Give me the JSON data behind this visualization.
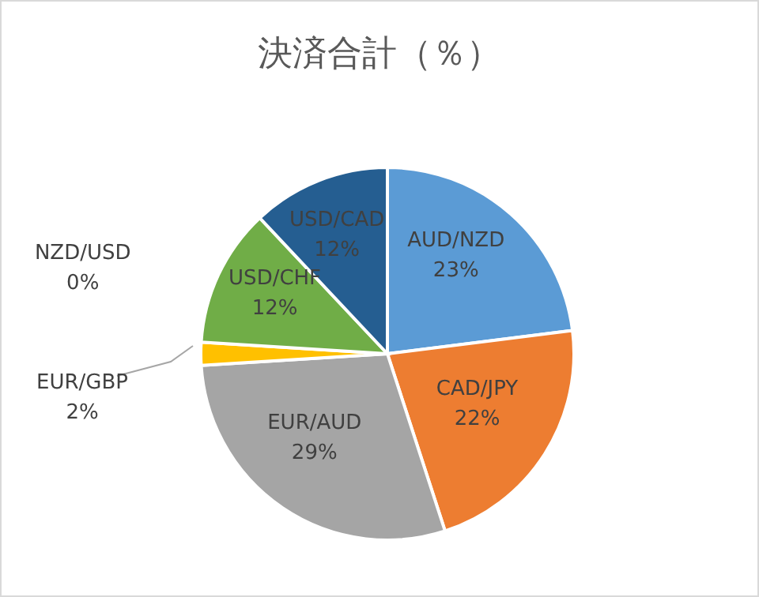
{
  "chart_data": {
    "type": "pie",
    "title": "決済合計（％）",
    "categories": [
      "AUD/NZD",
      "CAD/JPY",
      "EUR/AUD",
      "EUR/GBP",
      "NZD/USD",
      "USD/CHF",
      "USD/CAD"
    ],
    "values": [
      23,
      22,
      29,
      2,
      0,
      12,
      12
    ],
    "value_labels": [
      "23%",
      "22%",
      "29%",
      "2%",
      "0%",
      "12%",
      "12%"
    ],
    "colors": [
      "#5b9bd5",
      "#ed7d31",
      "#a5a5a5",
      "#ffc000",
      "#4472c4",
      "#70ad47",
      "#255e91"
    ],
    "legend": false
  }
}
